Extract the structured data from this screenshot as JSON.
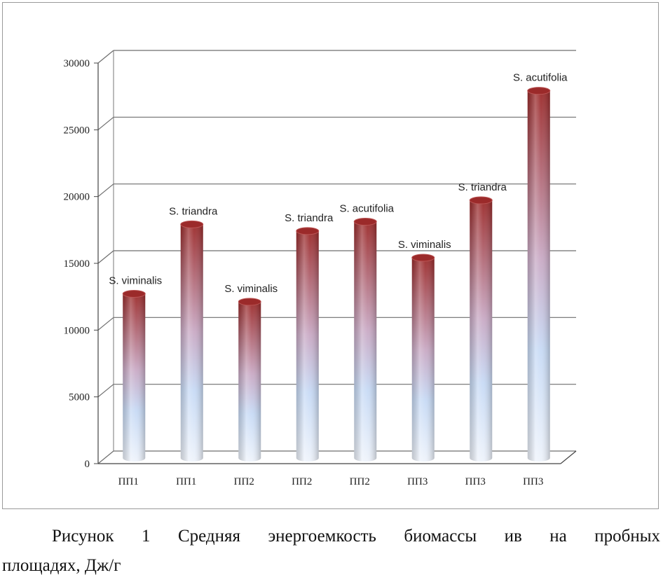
{
  "chart_data": {
    "type": "bar",
    "categories": [
      "ПП1",
      "ПП1",
      "ПП2",
      "ПП2",
      "ПП2",
      "ПП3",
      "ПП3",
      "ПП3"
    ],
    "values": [
      12300,
      17500,
      11700,
      17000,
      17700,
      15000,
      19300,
      27500
    ],
    "data_labels": [
      "S. viminalis",
      "S. triandra",
      "S. viminalis",
      "S. triandra",
      "S. acutifolia",
      "S. viminalis",
      "S. triandra",
      "S. acutifolia"
    ],
    "y_ticks": [
      "0",
      "5000",
      "10000",
      "15000",
      "20000",
      "25000",
      "30000"
    ],
    "ylim": [
      0,
      30000
    ],
    "grid": true,
    "title": "",
    "xlabel": "",
    "ylabel": ""
  },
  "colors": {
    "bar_top": "#9b2a2a",
    "bar_mid": "#c9a9c4",
    "bar_bottom": "#c7daf5",
    "grid": "#6e6e6e"
  },
  "caption": {
    "line1": "Рисунок 1 Средняя энергоемкость биомассы ив на пробных",
    "line2": "площадях, Дж/г"
  }
}
